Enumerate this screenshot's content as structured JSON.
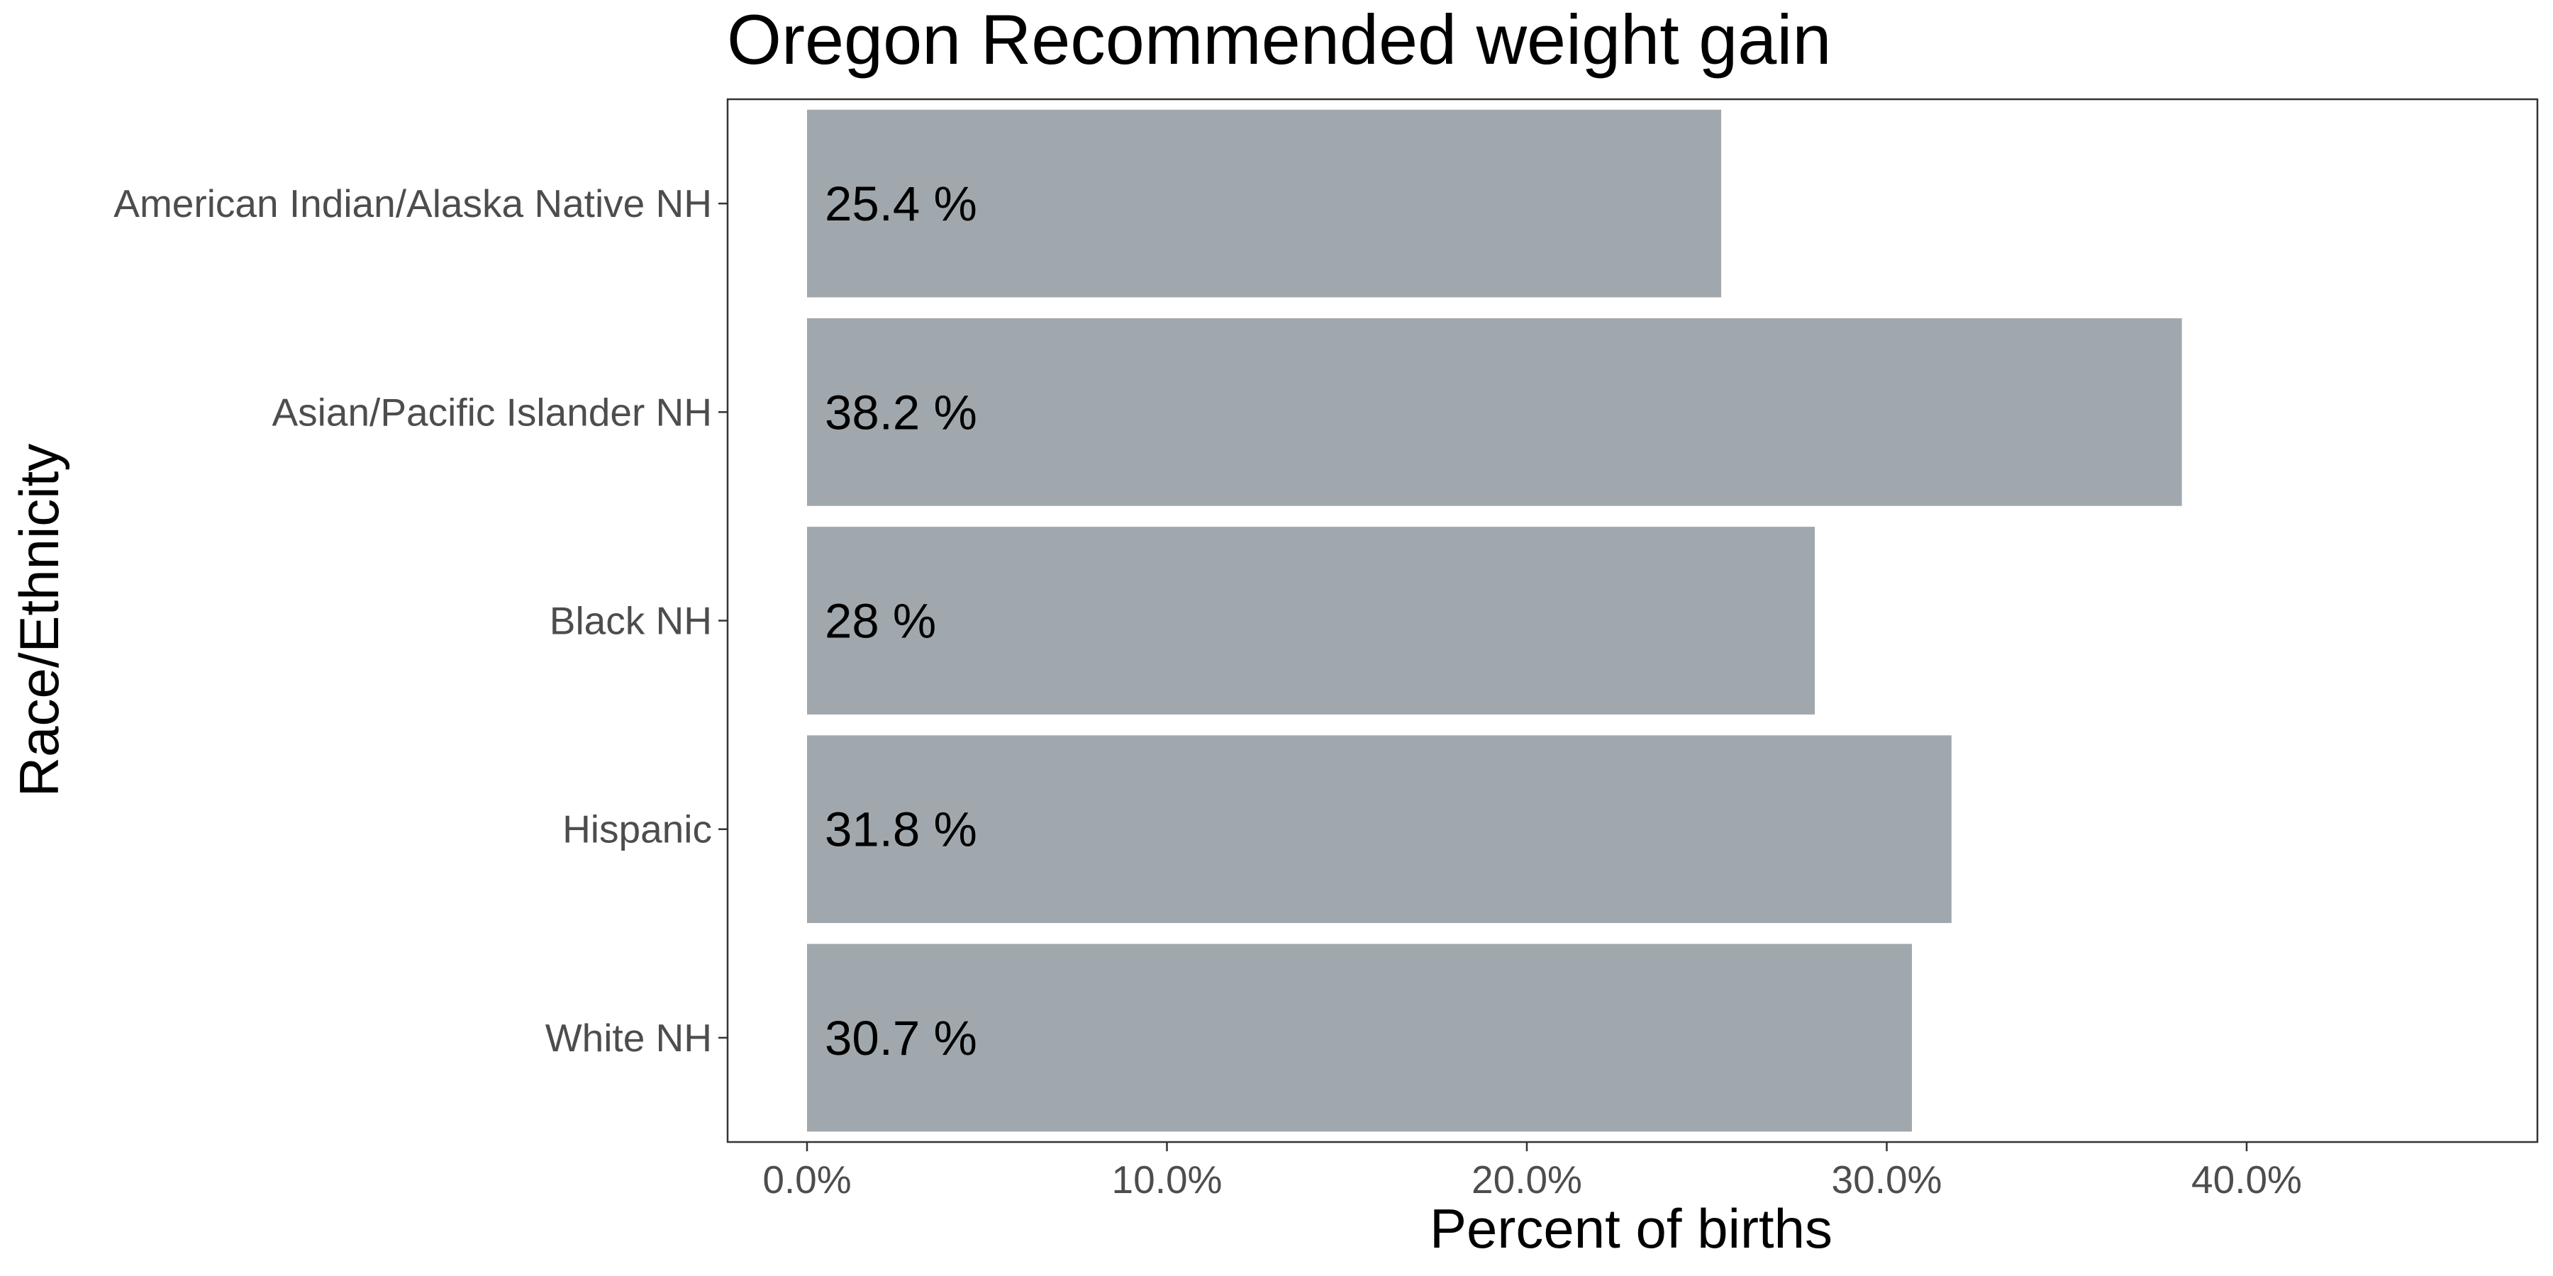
{
  "chart_data": {
    "type": "bar",
    "orientation": "horizontal",
    "title": "Oregon Recommended weight gain",
    "xlabel": "Percent of births",
    "ylabel": "Race/Ethnicity",
    "categories": [
      "American Indian/Alaska Native NH",
      "Asian/Pacific Islander NH",
      "Black NH",
      "Hispanic",
      "White NH"
    ],
    "values": [
      25.4,
      38.2,
      28,
      31.8,
      30.7
    ],
    "data_labels": [
      "25.4 %",
      "38.2 %",
      "28 %",
      "31.8 %",
      "30.7 %"
    ],
    "xlim": [
      0,
      48
    ],
    "xticks": [
      0,
      10,
      20,
      30,
      40
    ],
    "xtick_labels": [
      "0.0%",
      "10.0%",
      "20.0%",
      "30.0%",
      "40.0%"
    ],
    "bar_color": "#a0a8ad",
    "grid": false,
    "legend": "none"
  }
}
